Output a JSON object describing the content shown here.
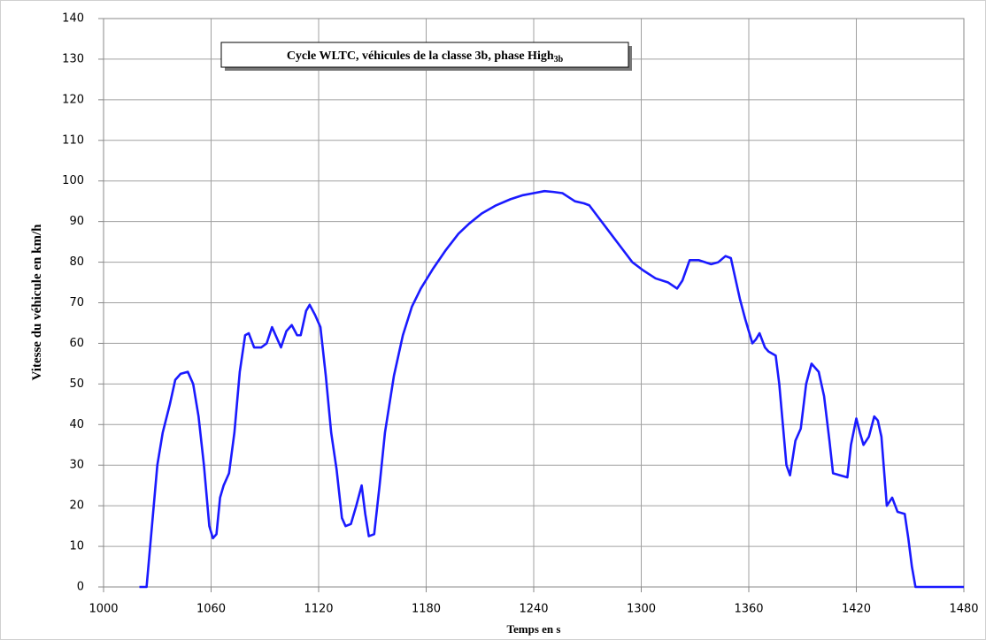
{
  "chart_data": {
    "type": "line",
    "title": "Cycle WLTC, véhicules de la classe 3b, phase High",
    "title_subscript": "3b",
    "x_label": "Temps en s",
    "y_label": "Vitesse du véhicule en km/h",
    "xlim": [
      1000,
      1480
    ],
    "xticks": [
      1000,
      1060,
      1120,
      1180,
      1240,
      1300,
      1360,
      1420,
      1480
    ],
    "ylim": [
      0,
      140
    ],
    "yticks": [
      0,
      10,
      20,
      30,
      40,
      50,
      60,
      70,
      80,
      90,
      100,
      110,
      120,
      130,
      140
    ],
    "grid": true,
    "x": [
      1020,
      1024,
      1027,
      1030,
      1033,
      1037,
      1040,
      1043,
      1047,
      1050,
      1053,
      1056,
      1059,
      1061,
      1063,
      1065,
      1067,
      1070,
      1073,
      1076,
      1079,
      1081,
      1084,
      1088,
      1091,
      1094,
      1096,
      1099,
      1102,
      1105,
      1108,
      1110,
      1113,
      1115,
      1118,
      1121,
      1124,
      1127,
      1130,
      1133,
      1135,
      1138,
      1141,
      1144,
      1146,
      1148,
      1151,
      1154,
      1157,
      1162,
      1167,
      1172,
      1177,
      1184,
      1191,
      1198,
      1204,
      1211,
      1219,
      1227,
      1234,
      1240,
      1246,
      1251,
      1256,
      1263,
      1268,
      1271,
      1277,
      1283,
      1289,
      1295,
      1301,
      1308,
      1315,
      1320,
      1323,
      1327,
      1332,
      1339,
      1343,
      1347,
      1350,
      1352,
      1355,
      1358,
      1362,
      1364,
      1366,
      1369,
      1371,
      1375,
      1377,
      1379,
      1381,
      1383,
      1386,
      1389,
      1392,
      1395,
      1399,
      1402,
      1405,
      1407,
      1411,
      1415,
      1417,
      1420,
      1422,
      1424,
      1427,
      1430,
      1432,
      1434,
      1437,
      1440,
      1443,
      1447,
      1449,
      1451,
      1453,
      1480
    ],
    "series": [
      {
        "name": "Vitesse",
        "color": "#1a1aff",
        "values": [
          0,
          0,
          15,
          30,
          38,
          45,
          51,
          52.5,
          53,
          50,
          42,
          30,
          15,
          12,
          13,
          22,
          25,
          28,
          38,
          53,
          62,
          62.5,
          59,
          59,
          60,
          64,
          62,
          59,
          63,
          64.5,
          62,
          62,
          68,
          69.5,
          67,
          64,
          52,
          38,
          29,
          17,
          15,
          15.5,
          20,
          25,
          18,
          12.5,
          13,
          25,
          38,
          52,
          62,
          69,
          73.5,
          78.5,
          83,
          87,
          89.5,
          92,
          94,
          95.5,
          96.5,
          97,
          97.5,
          97.3,
          97,
          95,
          94.5,
          94,
          90.5,
          87,
          83.5,
          80,
          78,
          76,
          75,
          73.5,
          75.5,
          80.5,
          80.5,
          79.5,
          80,
          81.5,
          81,
          77,
          71,
          66,
          60,
          61,
          62.5,
          59,
          58,
          57,
          50,
          40,
          30,
          27.5,
          36,
          39,
          50,
          55,
          53,
          47,
          36,
          28,
          27.5,
          27,
          35,
          41.5,
          38,
          35,
          37,
          42,
          41,
          37,
          20,
          22,
          18.5,
          18,
          12,
          5,
          0,
          0
        ]
      }
    ]
  }
}
